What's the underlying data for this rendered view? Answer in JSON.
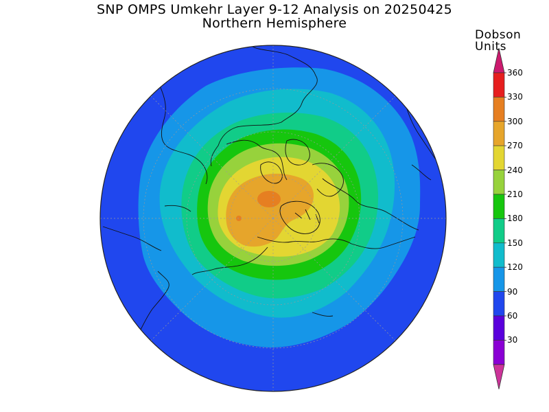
{
  "title": "SNP OMPS Umkehr Layer 9-12 Analysis on 20250425",
  "subtitle": "Northern Hemisphere",
  "colorbar": {
    "units_line1": "Dobson",
    "units_line2": "Units",
    "ticks": [
      "30",
      "60",
      "90",
      "120",
      "150",
      "180",
      "210",
      "240",
      "270",
      "300",
      "330",
      "360"
    ],
    "colors": [
      "#cc3399",
      "#8a00d4",
      "#5a00dc",
      "#2047ee",
      "#1696e8",
      "#11bccc",
      "#11cc88",
      "#16c60e",
      "#97d23c",
      "#e3d632",
      "#e6a52b",
      "#e67f21",
      "#e61e1e",
      "#cc1a6e"
    ]
  },
  "map": {
    "projection": "polar-stereographic-north",
    "quantity": "ozone-layer-9-12-dobson-units"
  }
}
